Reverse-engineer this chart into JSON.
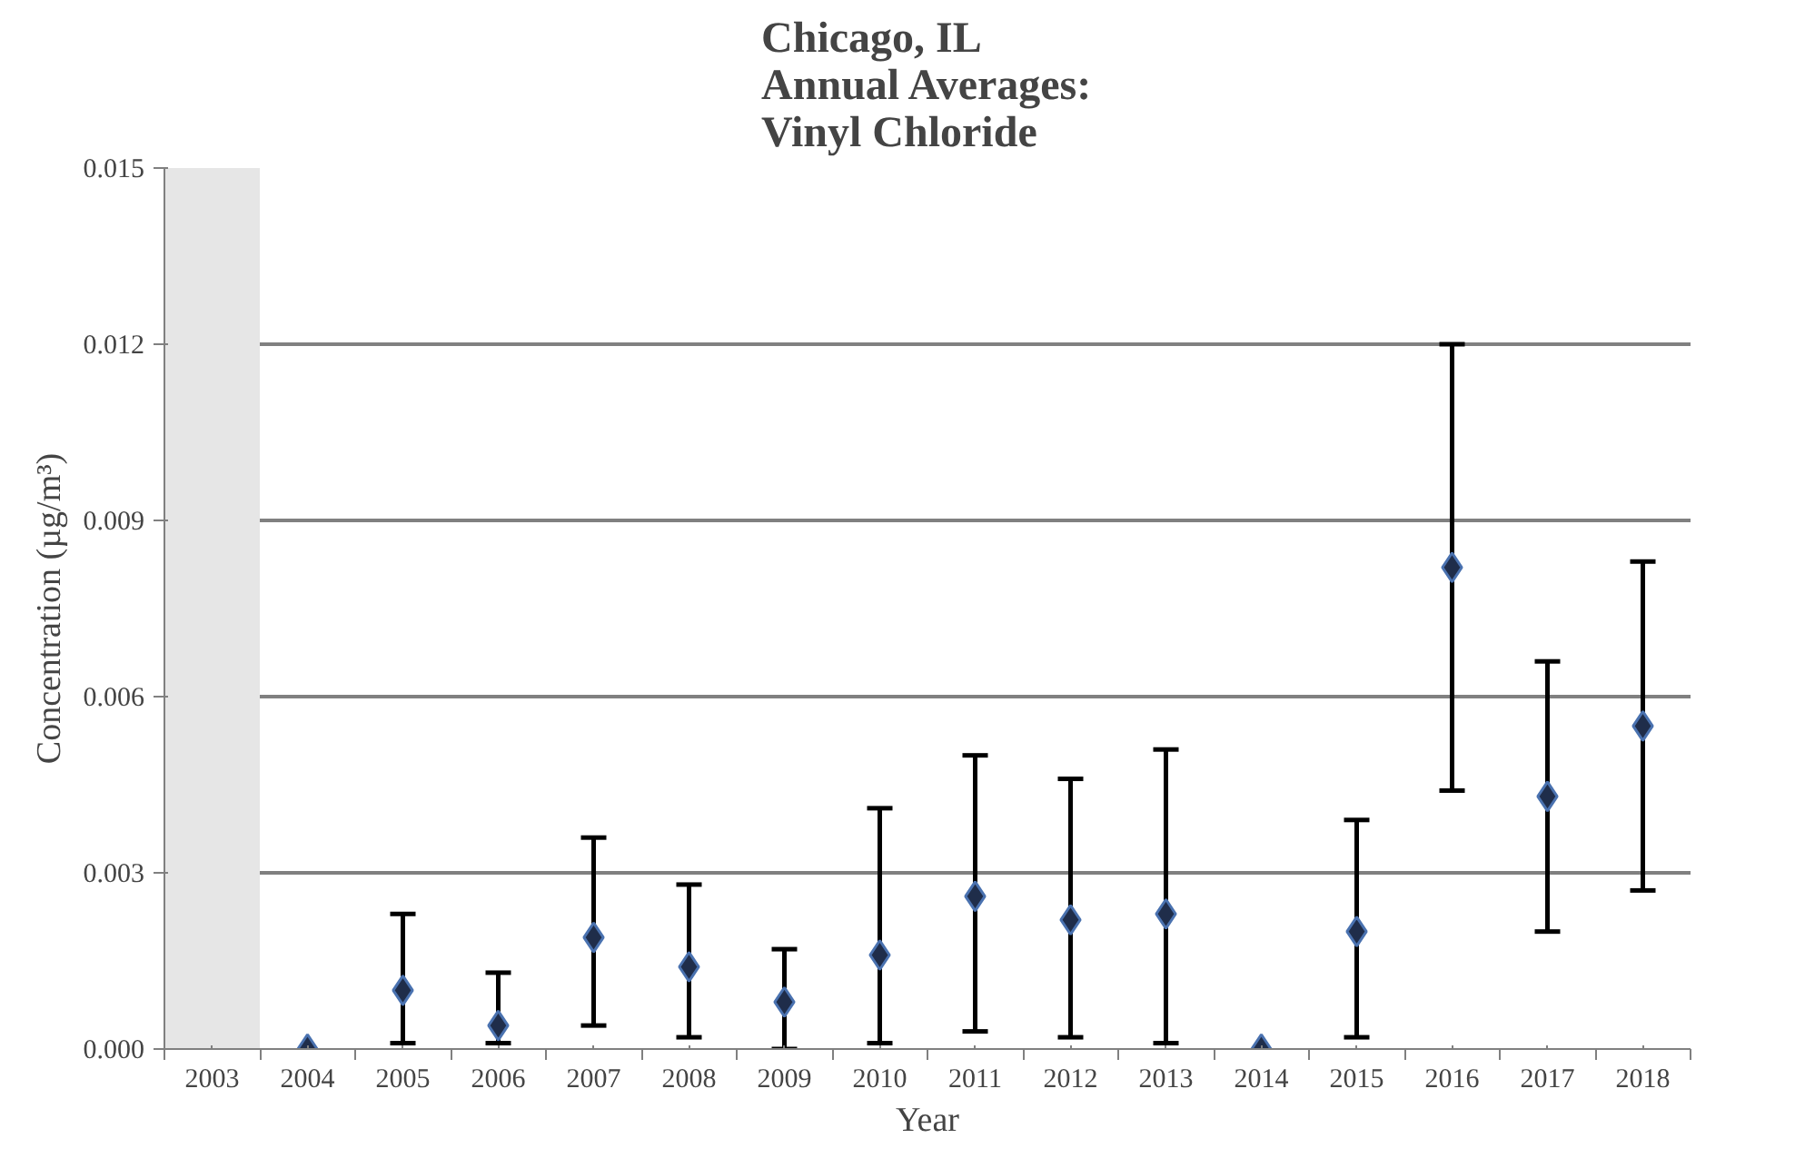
{
  "chart_data": {
    "type": "scatter",
    "title": "Chicago, IL\nAnnual Averages:\nVinyl Chloride",
    "xlabel": "Year",
    "ylabel": "Concentration (µg/m³)",
    "categories": [
      "2003",
      "2004",
      "2005",
      "2006",
      "2007",
      "2008",
      "2009",
      "2010",
      "2011",
      "2012",
      "2013",
      "2014",
      "2015",
      "2016",
      "2017",
      "2018"
    ],
    "series": [
      {
        "color": "#1f2d4a",
        "values": [
          null,
          0,
          0.001,
          0.0004,
          0.0019,
          0.0014,
          0.0008,
          0.0016,
          0.0026,
          0.0022,
          0.0023,
          0,
          0.002,
          0.0082,
          0.0043,
          0.0055
        ],
        "errors": [
          null,
          null,
          [
            0.0001,
            0.0023
          ],
          [
            0.0001,
            0.0013
          ],
          [
            0.0004,
            0.0036
          ],
          [
            0.0002,
            0.0028
          ],
          [
            0.0,
            0.0017
          ],
          [
            0.0001,
            0.0041
          ],
          [
            0.0003,
            0.005
          ],
          [
            0.0002,
            0.0046
          ],
          [
            0.0001,
            0.0051
          ],
          null,
          [
            0.0002,
            0.0039
          ],
          [
            0.0044,
            0.012
          ],
          [
            0.002,
            0.0066
          ],
          [
            0.0027,
            0.0083
          ]
        ]
      }
    ],
    "marker": "diamond",
    "ylim": [
      0,
      0.015
    ],
    "yticks": [
      {
        "value": 0,
        "label": "0.000"
      },
      0.003,
      0.006,
      0.009,
      0.012,
      0.015
    ],
    "bands": [
      {
        "axis": "x",
        "from": "2003",
        "to": "2003",
        "color": "#e6e6e6"
      }
    ],
    "grid": "y"
  }
}
